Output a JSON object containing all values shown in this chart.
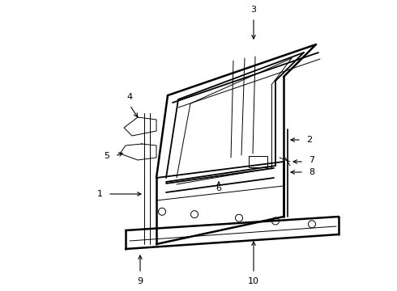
{
  "background_color": "#ffffff",
  "line_color": "#000000",
  "figsize": [
    4.9,
    3.6
  ],
  "dpi": 100,
  "lw_main": 1.3,
  "lw_thin": 0.7,
  "lw_thick": 1.8
}
